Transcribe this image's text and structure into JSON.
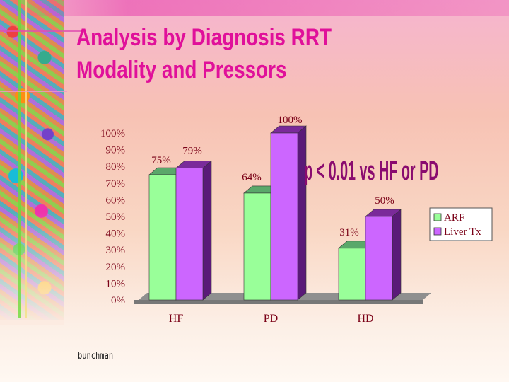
{
  "slide": {
    "title_line1": "Analysis by Diagnosis RRT",
    "title_line2": "Modality and Pressors",
    "annotation": "p < 0.01 vs HF or PD",
    "footer": "bunchman"
  },
  "colors": {
    "title": "#e0109a",
    "annotation": "#8a0b6f",
    "label_text": "#7a0016",
    "arf_front": "#99ff99",
    "arf_side": "#2e7d3e",
    "arf_top": "#5aa86a",
    "liver_front": "#cc66ff",
    "liver_side": "#5a1a78",
    "liver_top": "#7a2a9a",
    "floor": "#8f8f8f"
  },
  "chart_data": {
    "type": "bar",
    "categories": [
      "HF",
      "PD",
      "HD"
    ],
    "series": [
      {
        "name": "ARF",
        "values": [
          75,
          64,
          31
        ],
        "labels": [
          "75%",
          "64%",
          "31%"
        ]
      },
      {
        "name": "Liver Tx",
        "values": [
          79,
          100,
          50
        ],
        "labels": [
          "79%",
          "100%",
          "50%"
        ]
      }
    ],
    "ylim": [
      0,
      100
    ],
    "yticks": [
      "0%",
      "10%",
      "20%",
      "30%",
      "40%",
      "50%",
      "60%",
      "70%",
      "80%",
      "90%",
      "100%"
    ],
    "grid": false,
    "legend_position": "right",
    "three_d": true
  }
}
